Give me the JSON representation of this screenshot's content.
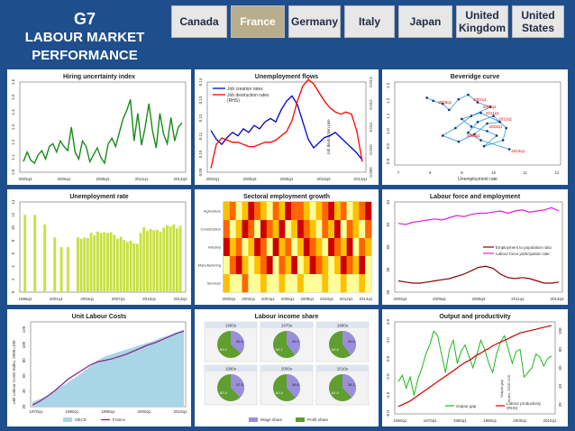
{
  "header": {
    "title_line1": "G7",
    "title_line2": "LABOUR MARKET",
    "title_line3": "PERFORMANCE"
  },
  "tabs": [
    {
      "label": "Canada",
      "active": false
    },
    {
      "label": "France",
      "active": true
    },
    {
      "label": "Germany",
      "active": false
    },
    {
      "label": "Italy",
      "active": false
    },
    {
      "label": "Japan",
      "active": false
    },
    {
      "label": "United Kingdom",
      "active": false
    },
    {
      "label": "United States",
      "active": false
    }
  ],
  "colors": {
    "accent": "#1f4e8c",
    "tab_active": "#b8ad8c",
    "green": "#1a8a1a",
    "red": "#ff0000",
    "blue": "#0000cc",
    "magenta": "#e020e0",
    "darkred": "#8b0000"
  },
  "chart_data": [
    {
      "type": "line",
      "title": "Hiring uncertainty index",
      "x_ticks": [
        "2003q3",
        "2006q1",
        "2008q3",
        "2011q1",
        "2013q3"
      ],
      "y_ticks": [
        "1.0",
        "1.1",
        "1.2",
        "1.3",
        "1.4",
        "1.5",
        "1.6"
      ],
      "ylim": [
        1.0,
        1.6
      ],
      "series": [
        {
          "values": [
            1.05,
            1.12,
            1.06,
            1.04,
            1.1,
            1.13,
            1.07,
            1.16,
            1.18,
            1.12,
            1.2,
            1.16,
            1.13,
            1.3,
            1.12,
            1.07,
            1.2,
            1.16,
            1.05,
            1.1,
            1.15,
            1.08,
            1.04,
            1.18,
            1.22,
            1.16,
            1.26,
            1.36,
            1.42,
            1.5,
            1.2,
            1.4,
            1.17,
            1.3,
            1.47,
            1.27,
            1.15,
            1.4,
            1.25,
            1.18,
            1.37,
            1.2,
            1.3,
            1.33
          ]
        }
      ]
    },
    {
      "type": "line",
      "title": "Unemployment flows",
      "x_ticks": [
        "2003q1",
        "2005q3",
        "2008q1",
        "2010q3",
        "2013q1"
      ],
      "y_ticks": [
        "0.09",
        "0.10",
        "0.11",
        "0.12",
        "0.13",
        "0.14"
      ],
      "y2_ticks": [
        "0.009",
        "0.010",
        "0.011",
        "0.012",
        "0.013"
      ],
      "ylim": [
        0.09,
        0.14
      ],
      "y2lim": [
        0.009,
        0.013
      ],
      "series": [
        {
          "name": "Job creation rates",
          "values": [
            0.113,
            0.108,
            0.105,
            0.109,
            0.112,
            0.11,
            0.114,
            0.112,
            0.116,
            0.114,
            0.118,
            0.12,
            0.118,
            0.125,
            0.13,
            0.133,
            0.128,
            0.118,
            0.108,
            0.103,
            0.106,
            0.109,
            0.11,
            0.112,
            0.109,
            0.106,
            0.103,
            0.1,
            0.096
          ]
        },
        {
          "name": "Job destruction rates (RHS)",
          "values": [
            0.0091,
            0.0102,
            0.0105,
            0.0104,
            0.0103,
            0.0103,
            0.0102,
            0.0101,
            0.0101,
            0.0102,
            0.0103,
            0.0103,
            0.0104,
            0.0106,
            0.0108,
            0.0113,
            0.0122,
            0.0129,
            0.0132,
            0.013,
            0.0126,
            0.0122,
            0.0119,
            0.0117,
            0.0116,
            0.0117,
            0.0116,
            0.0108,
            0.0094
          ]
        }
      ],
      "annotation": "Job destruction rate"
    },
    {
      "type": "scatter",
      "title": "Beveridge curve",
      "xlabel": "Unemployment rate",
      "x_ticks": [
        "7",
        "8",
        "9",
        "10",
        "11",
        "12"
      ],
      "y_ticks": [
        "0.8",
        "0.9",
        "1.0",
        "1.1",
        "1.2",
        "1.3"
      ],
      "xlim": [
        7,
        12
      ],
      "ylim": [
        0.8,
        1.3
      ],
      "labels": [
        {
          "text": "2006q1",
          "x": 8.2,
          "y": 1.18
        },
        {
          "text": "2007q1",
          "x": 9.3,
          "y": 1.2
        },
        {
          "text": "2008q1",
          "x": 9.6,
          "y": 1.15
        },
        {
          "text": "2011q1",
          "x": 9.7,
          "y": 1.11
        },
        {
          "text": "2012q1",
          "x": 10.1,
          "y": 1.07
        },
        {
          "text": "2010q1",
          "x": 9.8,
          "y": 1.02
        },
        {
          "text": "2009q1",
          "x": 9.1,
          "y": 0.96
        },
        {
          "text": "2013q1",
          "x": 10.5,
          "y": 0.86
        }
      ],
      "points": [
        [
          7.9,
          1.22
        ],
        [
          8.1,
          1.2
        ],
        [
          8.4,
          1.18
        ],
        [
          8.6,
          1.14
        ],
        [
          8.9,
          1.21
        ],
        [
          9.2,
          1.24
        ],
        [
          9.5,
          1.19
        ],
        [
          9.9,
          1.16
        ],
        [
          9.3,
          1.1
        ],
        [
          8.8,
          1.02
        ],
        [
          8.4,
          0.97
        ],
        [
          8.9,
          0.93
        ],
        [
          9.4,
          0.98
        ],
        [
          9.8,
          1.05
        ],
        [
          10.2,
          1.06
        ],
        [
          9.6,
          1.12
        ],
        [
          9.0,
          1.08
        ],
        [
          9.3,
          1.03
        ],
        [
          9.8,
          1.0
        ],
        [
          10.1,
          0.97
        ],
        [
          9.7,
          0.9
        ],
        [
          10.3,
          0.94
        ],
        [
          10.4,
          1.02
        ],
        [
          10.0,
          1.1
        ],
        [
          9.5,
          1.06
        ],
        [
          9.2,
          0.99
        ],
        [
          9.6,
          0.94
        ],
        [
          10.5,
          0.88
        ]
      ]
    },
    {
      "type": "bar",
      "title": "Unemployment rate",
      "x_ticks": [
        "1998q1",
        "2001q1",
        "2004q1",
        "2007q1",
        "2010q1",
        "2013q1"
      ],
      "y_ticks": [
        "0",
        "2",
        "4",
        "6",
        "8",
        "10",
        "12",
        "14"
      ],
      "ylim": [
        0,
        14
      ],
      "values": [
        12,
        0,
        0,
        12,
        0,
        0,
        10.5,
        0,
        0,
        8.5,
        0,
        7,
        0,
        7,
        0,
        0,
        8.5,
        8.3,
        8.5,
        8.4,
        9.2,
        8.8,
        9.4,
        9.2,
        9.3,
        9.2,
        9.3,
        8.9,
        8.3,
        8.6,
        8.1,
        7.8,
        8.0,
        7.6,
        7.5,
        9.2,
        10.1,
        9.5,
        9.8,
        9.6,
        9.7,
        9.4,
        10.0,
        10.4,
        10.2,
        10.5,
        9.9,
        10.3
      ]
    },
    {
      "type": "heatmap",
      "title": "Sectoral employment growth",
      "categories": [
        "Agriculture",
        "Construction",
        "Industry",
        "Manufacturing",
        "Services"
      ],
      "x_ticks": [
        "2000q1",
        "2002q1",
        "2004q1",
        "2006q1",
        "2008q1",
        "2010q1",
        "2012q1",
        "2014q1"
      ],
      "values": [
        [
          2,
          3,
          1,
          2,
          4,
          3,
          2,
          1,
          3,
          2,
          4,
          3,
          3,
          2,
          1,
          2,
          3,
          4,
          2,
          3,
          1,
          2,
          3,
          4
        ],
        [
          3,
          1,
          2,
          4,
          3,
          1,
          4,
          3,
          2,
          4,
          1,
          2,
          4,
          3,
          2,
          1,
          3,
          2,
          4,
          1,
          3,
          2,
          1,
          3
        ],
        [
          4,
          2,
          3,
          1,
          2,
          4,
          3,
          1,
          4,
          2,
          3,
          1,
          2,
          4,
          3,
          2,
          1,
          4,
          3,
          2,
          4,
          1,
          3,
          2
        ],
        [
          1,
          3,
          4,
          2,
          1,
          2,
          3,
          4,
          1,
          3,
          2,
          4,
          1,
          2,
          4,
          3,
          2,
          1,
          2,
          4,
          3,
          2,
          4,
          1
        ],
        [
          2,
          1,
          1,
          3,
          1,
          1,
          2,
          1,
          1,
          2,
          1,
          1,
          2,
          1,
          1,
          1,
          2,
          1,
          1,
          2,
          1,
          1,
          2,
          1
        ]
      ],
      "colors": [
        "#ffff99",
        "#ffc000",
        "#ff6600",
        "#cc0000"
      ]
    },
    {
      "type": "line",
      "title": "Labour force and employment",
      "x_ticks": [
        "2003q3",
        "2006q1",
        "2008q3",
        "2011q1",
        "2013q3"
      ],
      "y_ticks": [
        "56",
        "58",
        "60",
        "62",
        "64"
      ],
      "ylim": [
        56,
        64
      ],
      "series": [
        {
          "name": "Employment to population ratio",
          "values": [
            57.0,
            56.9,
            56.8,
            56.8,
            56.9,
            57.0,
            57.1,
            57.2,
            57.4,
            57.6,
            57.9,
            58.2,
            58.3,
            58.1,
            57.6,
            57.3,
            57.2,
            57.3,
            57.2,
            57.0,
            56.8,
            56.8,
            56.9
          ]
        },
        {
          "name": "Labour force participation rate",
          "values": [
            62.1,
            62.0,
            62.2,
            62.3,
            62.4,
            62.5,
            62.4,
            62.6,
            62.8,
            62.7,
            62.9,
            63.0,
            63.0,
            63.1,
            63.2,
            63.0,
            63.2,
            63.3,
            63.1,
            63.2,
            63.3,
            63.5,
            63.2
          ]
        }
      ]
    },
    {
      "type": "area",
      "title": "Unit Labour Costs",
      "ylabel": "Unit Labour Costs Index, 2005=100",
      "x_ticks": [
        "1970q1",
        "1980q1",
        "1990q1",
        "2000q1",
        "2010q1"
      ],
      "y_ticks": [
        "20",
        "40",
        "60",
        "80",
        "100",
        "120"
      ],
      "ylim": [
        20,
        130
      ],
      "series": [
        {
          "name": "OECD",
          "values": [
            26,
            30,
            34,
            40,
            46,
            52,
            58,
            65,
            72,
            80,
            85,
            88,
            91,
            94,
            97,
            100,
            103,
            106,
            110,
            113,
            117,
            120
          ]
        },
        {
          "name": "France",
          "values": [
            22,
            27,
            33,
            40,
            48,
            56,
            62,
            68,
            74,
            78,
            80,
            82,
            85,
            88,
            92,
            96,
            100,
            103,
            107,
            111,
            115,
            118
          ]
        }
      ]
    },
    {
      "type": "pie",
      "title": "Labour income share",
      "panels": [
        {
          "label": "1960s",
          "wage_share": 36.8,
          "profit_share": 63.2
        },
        {
          "label": "1970s",
          "wage_share": 39.3,
          "profit_share": 60.7
        },
        {
          "label": "1980s",
          "wage_share": 39.6,
          "profit_share": 60.4
        },
        {
          "label": "1990s",
          "wage_share": 37.6,
          "profit_share": 62.4
        },
        {
          "label": "2000s",
          "wage_share": 38.6,
          "profit_share": 61.4
        },
        {
          "label": "2010s",
          "wage_share": 38.1,
          "profit_share": 61.9
        }
      ],
      "legend": [
        "Wage share",
        "Profit share"
      ],
      "colors": [
        "#9b8fdb",
        "#5f9e2f"
      ]
    },
    {
      "type": "line",
      "title": "Output and productivity",
      "x_ticks": [
        "1960q1",
        "1970q1",
        "1980q1",
        "1990q1",
        "2000q1",
        "2010q1"
      ],
      "y_ticks": [
        "-6.0",
        "-4.0",
        "-2.0",
        "0.0",
        "2.0",
        "4.0"
      ],
      "y2_ticks": [
        "20",
        "40",
        "60",
        "80",
        "100"
      ],
      "ylim": [
        -6,
        4
      ],
      "y2lim": [
        10,
        110
      ],
      "series": [
        {
          "name": "Output gap",
          "values": [
            -2.5,
            -1.8,
            -3.2,
            -2.0,
            -4.0,
            -2.2,
            -1.0,
            0.5,
            1.5,
            3.0,
            2.5,
            0.5,
            -1.5,
            1.0,
            2.0,
            -0.5,
            0.8,
            1.5,
            0.2,
            -1.0,
            0.5,
            2.0,
            1.0,
            -0.5,
            -1.5,
            0.5,
            1.8,
            2.5,
            1.0,
            -0.5,
            0.8,
            1.0,
            -2.0,
            -1.5,
            -1.0,
            0.5,
            0.2,
            -0.8,
            0.0,
            0.3
          ]
        },
        {
          "name": "Labour productivity (RHS)",
          "values": [
            18,
            20,
            22,
            24,
            27,
            30,
            33,
            36,
            39,
            42,
            45,
            48,
            51,
            54,
            57,
            60,
            63,
            66,
            68,
            71,
            74,
            76,
            79,
            81,
            84,
            86,
            88,
            90,
            92,
            94,
            96,
            98,
            99,
            100,
            101,
            102,
            103,
            104,
            105,
            106
          ]
        }
      ],
      "y2label": "Index, 2005=100",
      "ylabel": "Output gap"
    }
  ]
}
